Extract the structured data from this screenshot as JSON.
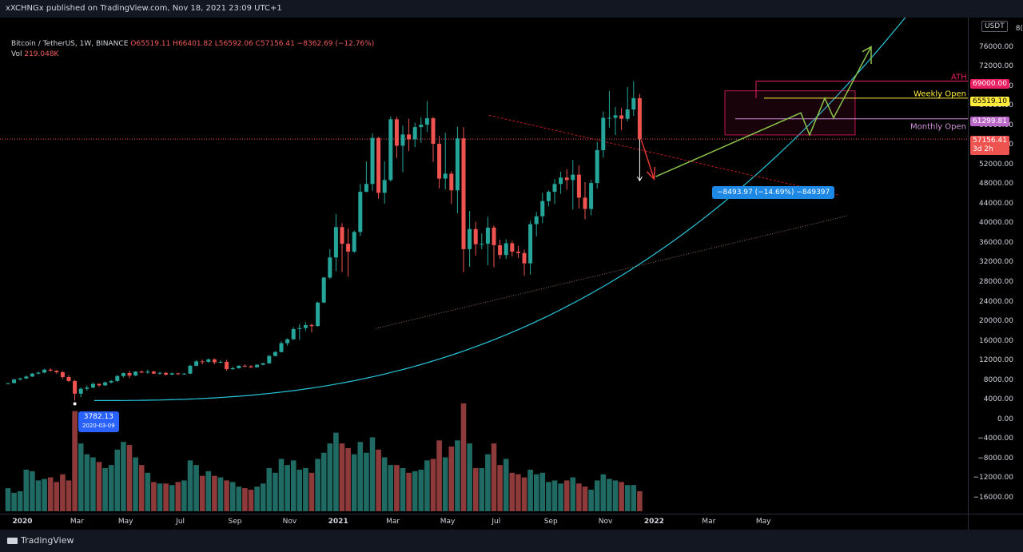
{
  "header": {
    "published_text": "xXCHNGx published on TradingView.com, Nov 18, 2021 23:09 UTC+1"
  },
  "legend": {
    "title": "Bitcoin / TetherUS, 1W, BINANCE",
    "open": "O65519.11",
    "high": "H66401.82",
    "low": "L56592.06",
    "close": "C57156.41",
    "change": "−8362.69 (−12.76%)",
    "vol_label": "Vol",
    "vol_value": "219.048K"
  },
  "currency": "USDT",
  "price_axis": {
    "top_partial": "8(",
    "ticks": [
      "76000.00",
      "72000.00",
      "68000.00",
      "64000.00",
      "60000.00",
      "56000.00",
      "52000.00",
      "48000.00",
      "44000.00",
      "40000.00",
      "36000.00",
      "32000.00",
      "28000.00",
      "24000.00",
      "20000.00",
      "16000.00",
      "12000.00",
      "8000.00",
      "4000.00",
      "0.00",
      "−4000.00",
      "−8000.00",
      "−12000.00",
      "−16000.00"
    ],
    "labels": {
      "ath": "69000.00",
      "weekly_open": "65519.10",
      "monthly_open": "61299.81",
      "last_price": "57156.41",
      "countdown": "3d 2h"
    }
  },
  "time_axis": {
    "ticks": [
      {
        "label": "2020",
        "bold": true
      },
      {
        "label": "Mar",
        "bold": false
      },
      {
        "label": "May",
        "bold": false
      },
      {
        "label": "Jul",
        "bold": false
      },
      {
        "label": "Sep",
        "bold": false
      },
      {
        "label": "Nov",
        "bold": false
      },
      {
        "label": "2021",
        "bold": true
      },
      {
        "label": "Mar",
        "bold": false
      },
      {
        "label": "May",
        "bold": false
      },
      {
        "label": "Jul",
        "bold": false
      },
      {
        "label": "Sep",
        "bold": false
      },
      {
        "label": "Nov",
        "bold": false
      },
      {
        "label": "2022",
        "bold": true
      },
      {
        "label": "Mar",
        "bold": false
      },
      {
        "label": "May",
        "bold": false
      }
    ]
  },
  "annotations": {
    "ath": "ATH",
    "weekly_open": "Weekly Open",
    "monthly_open": "Monthly Open",
    "low_price": "3782.13",
    "low_date": "2020-03-09",
    "measure": "−8493.97 (−14.69%) −849397"
  },
  "colors": {
    "up": "#26a69a",
    "down": "#ef5350",
    "ath": "#e91e63",
    "weekly": "#ffeb3b",
    "monthly": "#ce93d8",
    "curve": "#26c6da",
    "projection": "#8bc34a"
  },
  "footer": {
    "brand": "TradingView"
  },
  "chart_data": {
    "type": "candlestick",
    "symbol": "Bitcoin / TetherUS",
    "interval": "1W",
    "exchange": "BINANCE",
    "ylim": [
      -17000,
      80000
    ],
    "candles": [
      [
        7200,
        7400,
        7100,
        7350
      ],
      [
        7350,
        8200,
        7300,
        8100
      ],
      [
        8100,
        8500,
        7900,
        8300
      ],
      [
        8300,
        8900,
        8200,
        8700
      ],
      [
        8700,
        9400,
        8600,
        9300
      ],
      [
        9300,
        9700,
        9100,
        9500
      ],
      [
        9500,
        10300,
        9400,
        10100
      ],
      [
        10100,
        10400,
        9700,
        9900
      ],
      [
        9900,
        10000,
        9300,
        9600
      ],
      [
        9600,
        9800,
        8200,
        8600
      ],
      [
        8600,
        9000,
        7600,
        7800
      ],
      [
        7800,
        8000,
        3782,
        5200
      ],
      [
        5200,
        6500,
        4500,
        6200
      ],
      [
        6200,
        6900,
        5800,
        6450
      ],
      [
        6450,
        7500,
        6300,
        7200
      ],
      [
        7200,
        7300,
        6600,
        6900
      ],
      [
        6900,
        7700,
        6800,
        7500
      ],
      [
        7500,
        8000,
        7300,
        7800
      ],
      [
        7800,
        9000,
        7600,
        8800
      ],
      [
        8800,
        9500,
        8500,
        9400
      ],
      [
        9400,
        9900,
        8400,
        8900
      ],
      [
        8900,
        9800,
        8800,
        9700
      ],
      [
        9700,
        10000,
        9400,
        9500
      ],
      [
        9500,
        10100,
        9300,
        9700
      ],
      [
        9700,
        9900,
        9200,
        9300
      ],
      [
        9300,
        9700,
        9100,
        9450
      ],
      [
        9450,
        9600,
        8900,
        9100
      ],
      [
        9100,
        9500,
        9000,
        9350
      ],
      [
        9350,
        9450,
        9000,
        9200
      ],
      [
        9200,
        9400,
        9100,
        9300
      ],
      [
        9300,
        11100,
        9200,
        10900
      ],
      [
        10900,
        12000,
        10800,
        11800
      ],
      [
        11800,
        12100,
        11200,
        11700
      ],
      [
        11700,
        12400,
        11500,
        12200
      ],
      [
        12200,
        12400,
        11200,
        11600
      ],
      [
        11600,
        12000,
        11400,
        11700
      ],
      [
        11700,
        12100,
        9900,
        10200
      ],
      [
        10200,
        10700,
        10100,
        10400
      ],
      [
        10400,
        11000,
        10300,
        10900
      ],
      [
        10900,
        11200,
        10600,
        10800
      ],
      [
        10800,
        11000,
        10400,
        10600
      ],
      [
        10600,
        11200,
        10500,
        11100
      ],
      [
        11100,
        11500,
        11000,
        11400
      ],
      [
        11400,
        13100,
        11300,
        12900
      ],
      [
        12900,
        13900,
        12800,
        13700
      ],
      [
        13700,
        15900,
        13600,
        15500
      ],
      [
        15500,
        16500,
        15000,
        16300
      ],
      [
        16300,
        18800,
        16200,
        18400
      ],
      [
        18400,
        19400,
        16200,
        18600
      ],
      [
        18600,
        19800,
        18000,
        19200
      ],
      [
        19200,
        19500,
        17700,
        19000
      ],
      [
        19000,
        24000,
        18900,
        23800
      ],
      [
        23800,
        29000,
        23700,
        28900
      ],
      [
        28900,
        34700,
        28600,
        33000
      ],
      [
        33000,
        41900,
        30200,
        39200
      ],
      [
        39200,
        40000,
        30000,
        35800
      ],
      [
        35800,
        38900,
        29100,
        34200
      ],
      [
        34200,
        38500,
        33900,
        38200
      ],
      [
        38200,
        48000,
        37400,
        46400
      ],
      [
        46400,
        52600,
        46300,
        48000
      ],
      [
        48000,
        58300,
        46600,
        57400
      ],
      [
        57400,
        57600,
        45000,
        46200
      ],
      [
        46200,
        52600,
        44000,
        48800
      ],
      [
        48800,
        61800,
        48500,
        61200
      ],
      [
        61200,
        61700,
        53300,
        55800
      ],
      [
        55800,
        59900,
        50400,
        58100
      ],
      [
        58100,
        61300,
        54700,
        57100
      ],
      [
        57100,
        60500,
        55500,
        59600
      ],
      [
        59600,
        61600,
        56400,
        60100
      ],
      [
        60100,
        64900,
        58600,
        61400
      ],
      [
        61400,
        61700,
        52500,
        56200
      ],
      [
        56200,
        57800,
        47100,
        49100
      ],
      [
        49100,
        58400,
        46900,
        50100
      ],
      [
        50100,
        50600,
        43900,
        46700
      ],
      [
        46700,
        59700,
        42000,
        57300
      ],
      [
        57300,
        59600,
        30000,
        34700
      ],
      [
        34700,
        42500,
        31100,
        38800
      ],
      [
        38800,
        40300,
        33400,
        35700
      ],
      [
        35700,
        37900,
        34700,
        35800
      ],
      [
        35800,
        41300,
        31400,
        39100
      ],
      [
        39100,
        39500,
        31000,
        35500
      ],
      [
        35500,
        36600,
        32700,
        33500
      ],
      [
        33500,
        36700,
        32700,
        35900
      ],
      [
        35900,
        36400,
        33200,
        34200
      ],
      [
        34200,
        35400,
        32900,
        33900
      ],
      [
        33900,
        34600,
        29300,
        31800
      ],
      [
        31800,
        40500,
        29500,
        39800
      ],
      [
        39800,
        42300,
        37300,
        41400
      ],
      [
        41400,
        46200,
        40000,
        44500
      ],
      [
        44500,
        46700,
        43400,
        46400
      ],
      [
        46400,
        49000,
        43900,
        48000
      ],
      [
        48000,
        50500,
        46000,
        49300
      ],
      [
        49300,
        51000,
        46800,
        48800
      ],
      [
        48800,
        52900,
        42800,
        49900
      ],
      [
        49900,
        51800,
        43000,
        45200
      ],
      [
        45200,
        48400,
        40800,
        42900
      ],
      [
        42900,
        48800,
        41600,
        48200
      ],
      [
        48200,
        56600,
        47100,
        54900
      ],
      [
        54900,
        62800,
        53400,
        61500
      ],
      [
        61500,
        67000,
        59500,
        61500
      ],
      [
        61500,
        63700,
        58000,
        62000
      ],
      [
        62000,
        63500,
        59000,
        61300
      ],
      [
        61300,
        67800,
        60800,
        63200
      ],
      [
        63200,
        69000,
        61900,
        65500
      ],
      [
        65500,
        66400,
        56600,
        57156
      ]
    ],
    "volume": [
      15000,
      12000,
      13000,
      27000,
      26000,
      20000,
      21000,
      22000,
      19000,
      24000,
      20000,
      65000,
      44000,
      37000,
      35000,
      32000,
      28000,
      30000,
      40000,
      45000,
      43000,
      35000,
      30000,
      25000,
      19000,
      18000,
      18000,
      17000,
      19000,
      20000,
      33000,
      30000,
      23000,
      26000,
      23000,
      22000,
      20000,
      19000,
      16000,
      15000,
      14000,
      16000,
      18000,
      28000,
      25000,
      34000,
      30000,
      33000,
      27000,
      28000,
      25000,
      34000,
      38000,
      44000,
      51000,
      44000,
      41000,
      37000,
      45000,
      38000,
      48000,
      40000,
      35000,
      30000,
      30000,
      28000,
      25000,
      26000,
      27000,
      33000,
      34000,
      46000,
      35000,
      42000,
      46000,
      70000,
      44000,
      28000,
      28000,
      37000,
      44000,
      30000,
      34000,
      25000,
      24000,
      22000,
      27000,
      24000,
      25000,
      19000,
      20000,
      18000,
      20000,
      22000,
      18000,
      16000,
      14000,
      20000,
      24000,
      21000,
      20000,
      19000,
      17000,
      17000,
      13000
    ]
  }
}
